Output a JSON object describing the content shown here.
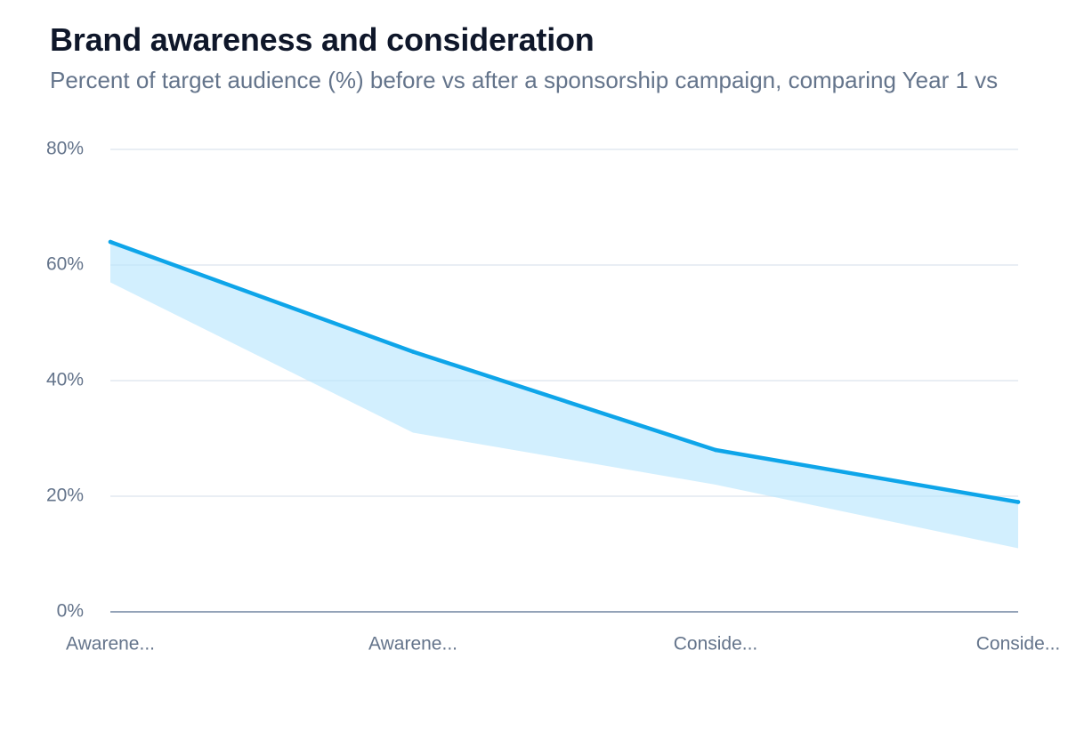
{
  "chart_data": {
    "type": "area",
    "title": "Brand awareness and consideration",
    "subtitle": "Percent of target audience (%) before vs after a sponsorship campaign, comparing Year 1 vs",
    "categories": [
      "Awarene...",
      "Awarene...",
      "Conside...",
      "Conside..."
    ],
    "series": [
      {
        "values": [
          64,
          45,
          28,
          19
        ]
      },
      {
        "values": [
          57,
          31,
          22,
          11
        ]
      }
    ],
    "ylim": [
      0,
      80
    ],
    "yticks": [
      0,
      20,
      40,
      60,
      80
    ],
    "ytick_labels": [
      "0%",
      "20%",
      "40%",
      "60%",
      "80%"
    ],
    "grid": true,
    "colors": {
      "line": "#0ea5e9",
      "band_fill": "#bae6fd",
      "grid": "#e2e8f0",
      "axis": "#94a3b8"
    }
  }
}
